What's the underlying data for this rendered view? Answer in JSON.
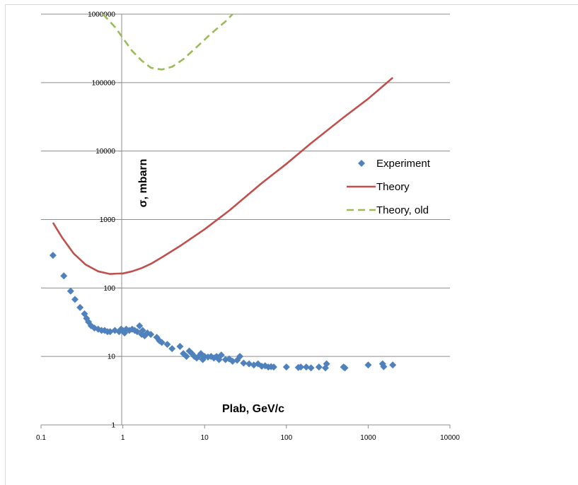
{
  "chart_data": {
    "type": "scatter",
    "title": "",
    "xlabel": "Plab, GeV/c",
    "ylabel": "σ, mbarn",
    "xscale": "log",
    "yscale": "log",
    "xlim": [
      0.1,
      10000
    ],
    "ylim": [
      1,
      1000000
    ],
    "x_ticks": [
      "0.1",
      "1",
      "10",
      "100",
      "1000",
      "10000"
    ],
    "y_ticks": [
      "1",
      "10",
      "100",
      "1000",
      "10000",
      "100000",
      "1000000"
    ],
    "grid": "horizontal",
    "legend_position": "right",
    "series": [
      {
        "name": "Experiment",
        "kind": "scatter",
        "marker": "diamond",
        "color": "#4f81bd",
        "points": [
          [
            0.14,
            300
          ],
          [
            0.19,
            150
          ],
          [
            0.23,
            90
          ],
          [
            0.26,
            68
          ],
          [
            0.3,
            52
          ],
          [
            0.34,
            42
          ],
          [
            0.36,
            36
          ],
          [
            0.38,
            32
          ],
          [
            0.41,
            28
          ],
          [
            0.45,
            26
          ],
          [
            0.5,
            25
          ],
          [
            0.55,
            24
          ],
          [
            0.6,
            24
          ],
          [
            0.65,
            23
          ],
          [
            0.7,
            23
          ],
          [
            0.8,
            24
          ],
          [
            0.9,
            23
          ],
          [
            0.95,
            25
          ],
          [
            1.0,
            24
          ],
          [
            1.05,
            22
          ],
          [
            1.1,
            25
          ],
          [
            1.2,
            24
          ],
          [
            1.3,
            25
          ],
          [
            1.4,
            24
          ],
          [
            1.5,
            23
          ],
          [
            1.6,
            28
          ],
          [
            1.7,
            21
          ],
          [
            1.75,
            24
          ],
          [
            1.85,
            20
          ],
          [
            2.0,
            22
          ],
          [
            2.2,
            21
          ],
          [
            2.6,
            19
          ],
          [
            2.8,
            17
          ],
          [
            3.0,
            16
          ],
          [
            3.5,
            15
          ],
          [
            4.0,
            13
          ],
          [
            5.0,
            14
          ],
          [
            5.5,
            11
          ],
          [
            6.0,
            10
          ],
          [
            6.5,
            12
          ],
          [
            7.0,
            11
          ],
          [
            7.5,
            10
          ],
          [
            8.0,
            9.5
          ],
          [
            8.5,
            10
          ],
          [
            9.0,
            11
          ],
          [
            9.5,
            9
          ],
          [
            10.0,
            10
          ],
          [
            11.0,
            9.8
          ],
          [
            12.0,
            10
          ],
          [
            13.0,
            9.5
          ],
          [
            14.0,
            10
          ],
          [
            15.0,
            9
          ],
          [
            16.0,
            10.5
          ],
          [
            18.0,
            9
          ],
          [
            20.0,
            9.2
          ],
          [
            22.0,
            8.5
          ],
          [
            25.0,
            8.8
          ],
          [
            27.0,
            10
          ],
          [
            30.0,
            8
          ],
          [
            35.0,
            7.8
          ],
          [
            40.0,
            7.5
          ],
          [
            45.0,
            7.8
          ],
          [
            50.0,
            7.2
          ],
          [
            55.0,
            7.3
          ],
          [
            60.0,
            7
          ],
          [
            65.0,
            7.1
          ],
          [
            70.0,
            7
          ],
          [
            100.0,
            7
          ],
          [
            140.0,
            6.9
          ],
          [
            150.0,
            7
          ],
          [
            175.0,
            7
          ],
          [
            200.0,
            6.8
          ],
          [
            250.0,
            7
          ],
          [
            300.0,
            6.8
          ],
          [
            310.0,
            7.8
          ],
          [
            500.0,
            7
          ],
          [
            520.0,
            6.8
          ],
          [
            1000.0,
            7.5
          ],
          [
            1500.0,
            7.8
          ],
          [
            1550.0,
            7.1
          ],
          [
            2000.0,
            7.5
          ]
        ]
      },
      {
        "name": "Theory",
        "kind": "line",
        "style": "solid",
        "color": "#c0504d",
        "points": [
          [
            0.14,
            900
          ],
          [
            0.18,
            550
          ],
          [
            0.25,
            320
          ],
          [
            0.35,
            220
          ],
          [
            0.5,
            175
          ],
          [
            0.7,
            160
          ],
          [
            0.85,
            162
          ],
          [
            1.0,
            163
          ],
          [
            1.3,
            175
          ],
          [
            1.7,
            195
          ],
          [
            2.2,
            225
          ],
          [
            3.0,
            280
          ],
          [
            5.0,
            410
          ],
          [
            10.0,
            720
          ],
          [
            20.0,
            1350
          ],
          [
            50.0,
            3400
          ],
          [
            100.0,
            6500
          ],
          [
            200.0,
            13000
          ],
          [
            500.0,
            31000
          ],
          [
            1000.0,
            58000
          ],
          [
            2000.0,
            118000
          ]
        ]
      },
      {
        "name": "Theory, old",
        "kind": "line",
        "style": "dashed",
        "color": "#9bbb59",
        "points": [
          [
            0.57,
            1000000
          ],
          [
            0.8,
            650000
          ],
          [
            1.0,
            450000
          ],
          [
            1.3,
            290000
          ],
          [
            1.7,
            210000
          ],
          [
            2.2,
            165000
          ],
          [
            3.0,
            155000
          ],
          [
            4.0,
            170000
          ],
          [
            5.5,
            220000
          ],
          [
            8.0,
            330000
          ],
          [
            12.0,
            520000
          ],
          [
            18.0,
            780000
          ],
          [
            22.0,
            1000000
          ]
        ]
      }
    ]
  }
}
